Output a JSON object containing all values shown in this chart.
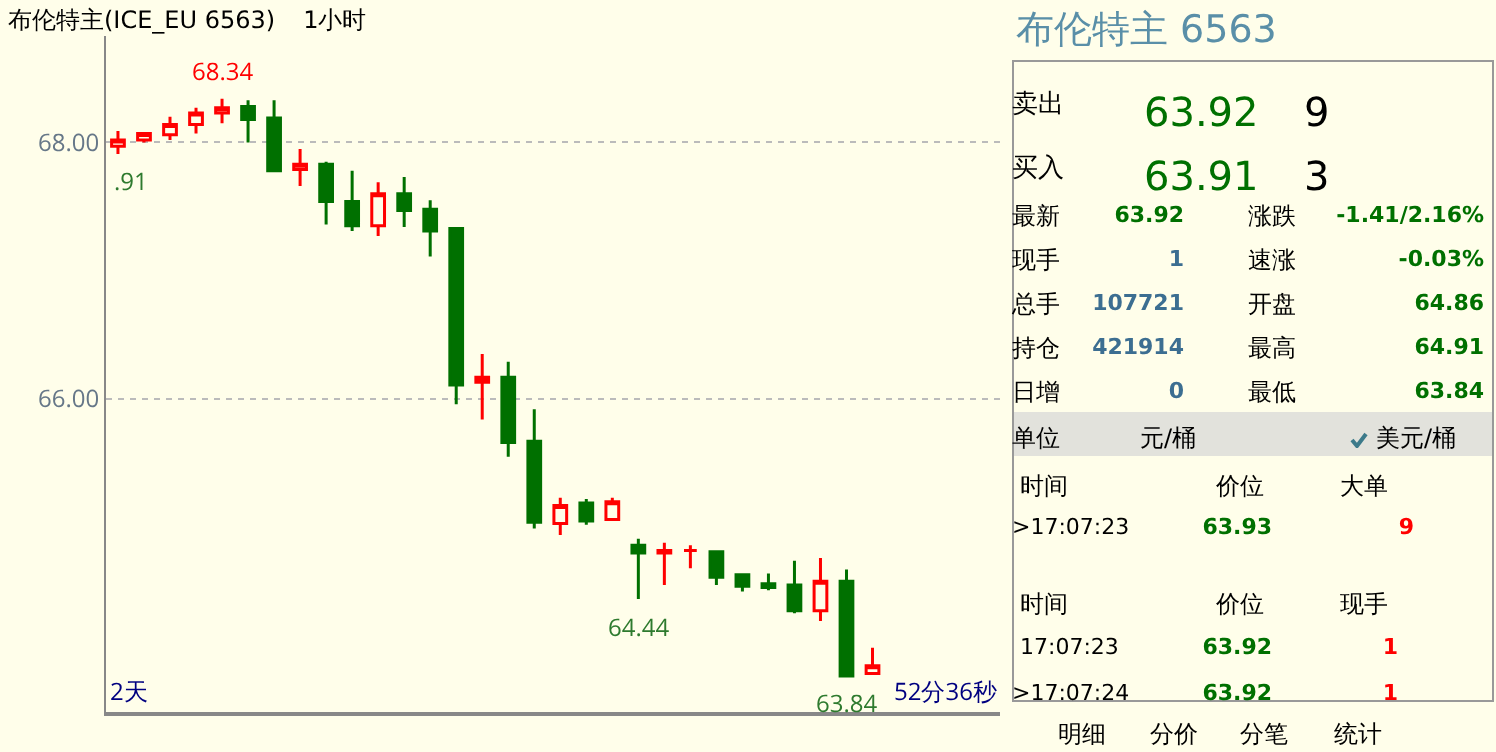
{
  "chart_data": [
    {
      "type": "candlestick",
      "title": "布伦特主(ICE_EU 6563)",
      "subtitle": "1小时",
      "categories": [
        null,
        null,
        null,
        null,
        null,
        null,
        null,
        null,
        null,
        null,
        null,
        null,
        null,
        null,
        null,
        null,
        null,
        null,
        null,
        null,
        null,
        null,
        null,
        null,
        null,
        null,
        null,
        null,
        null,
        null
      ],
      "ohlc": [
        [
          67.97,
          68.09,
          67.91,
          68.02
        ],
        [
          68.02,
          68.08,
          68.0,
          68.07
        ],
        [
          68.06,
          68.2,
          68.02,
          68.14
        ],
        [
          68.14,
          68.27,
          68.07,
          68.23
        ],
        [
          68.23,
          68.34,
          68.15,
          68.27
        ],
        [
          68.28,
          68.33,
          68.0,
          68.18
        ],
        [
          68.19,
          68.33,
          67.78,
          67.78
        ],
        [
          67.79,
          67.95,
          67.66,
          67.83
        ],
        [
          67.83,
          67.85,
          67.36,
          67.54
        ],
        [
          67.54,
          67.78,
          67.31,
          67.35
        ],
        [
          67.35,
          67.69,
          67.27,
          67.6
        ],
        [
          67.6,
          67.73,
          67.34,
          67.47
        ],
        [
          67.48,
          67.55,
          67.11,
          67.31
        ],
        [
          67.33,
          67.34,
          65.96,
          66.11
        ],
        [
          66.13,
          66.35,
          65.84,
          66.17
        ],
        [
          66.17,
          66.29,
          65.55,
          65.66
        ],
        [
          65.67,
          65.92,
          64.99,
          65.04
        ],
        [
          65.03,
          65.23,
          64.94,
          65.17
        ],
        [
          65.19,
          65.22,
          65.02,
          65.05
        ],
        [
          65.06,
          65.23,
          65.06,
          65.2
        ],
        [
          64.86,
          64.91,
          64.44,
          64.8
        ],
        [
          64.8,
          64.88,
          64.55,
          64.82
        ],
        [
          64.82,
          64.86,
          64.68,
          64.82
        ],
        [
          64.81,
          64.81,
          64.55,
          64.61
        ],
        [
          64.63,
          64.64,
          64.5,
          64.54
        ],
        [
          64.56,
          64.64,
          64.51,
          64.53
        ],
        [
          64.55,
          64.74,
          64.33,
          64.35
        ],
        [
          64.35,
          64.76,
          64.27,
          64.58
        ],
        [
          64.58,
          64.67,
          63.84,
          63.84
        ],
        [
          63.86,
          64.06,
          63.86,
          63.92
        ]
      ],
      "ylim": [
        63.56,
        68.83
      ],
      "yticks": [
        {
          "value": 68,
          "label": "68.00"
        },
        {
          "value": 66,
          "label": "66.00"
        }
      ],
      "grid": "y",
      "tick_labels": "y",
      "annotations": [
        {
          "text": "68.34",
          "y": 68.34
        },
        {
          "text": ".91",
          "y": 67.91
        },
        {
          "text": "64.44",
          "y": 64.44
        },
        {
          "text": "63.84",
          "y": 63.84
        },
        "2天",
        "52分36秒"
      ]
    },
    {
      "type": "other",
      "title": "布伦特主 6563",
      "annotations": [
        "卖出",
        "63.92",
        "9",
        "买入",
        "63.91",
        "3",
        "最新",
        "63.92",
        "涨跌",
        "-1.41/2.16%",
        "现手",
        "1",
        "速涨",
        "-0.03%",
        "总手",
        "107721",
        "开盘",
        "64.86",
        "持仓",
        "421914",
        "最高",
        "64.91",
        "日增",
        "0",
        "最低",
        "63.84",
        "单位",
        "元/桶",
        "美元/桶",
        "时间",
        "价位",
        "大单",
        ">17:07:23",
        "63.93",
        "9",
        "时间",
        "价位",
        "现手",
        "17:07:23",
        "63.92",
        "1",
        ">17:07:24",
        "63.92",
        "1",
        "明细",
        "分价",
        "分笔",
        "统计"
      ]
    }
  ]
}
